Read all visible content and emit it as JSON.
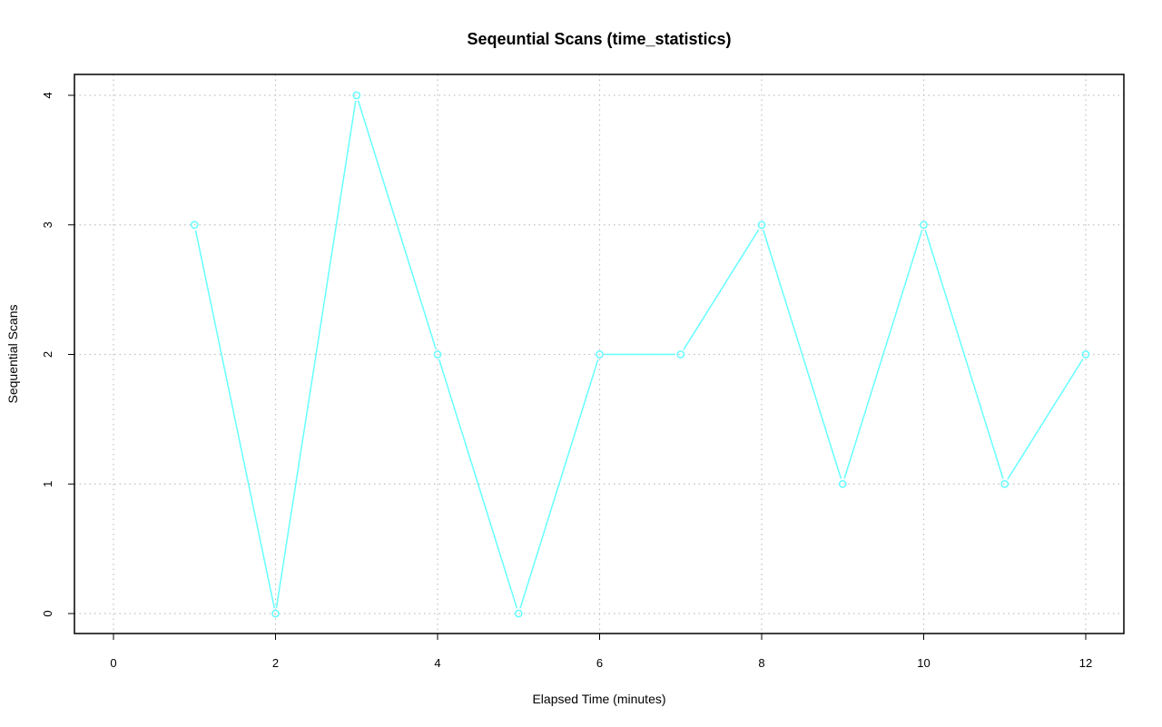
{
  "chart_data": {
    "type": "line",
    "title": "Seqeuntial Scans (time_statistics)",
    "xlabel": "Elapsed Time (minutes)",
    "ylabel": "Sequential Scans",
    "xlim": [
      0,
      12
    ],
    "ylim": [
      0,
      4
    ],
    "x_ticks": [
      0,
      2,
      4,
      6,
      8,
      10,
      12
    ],
    "y_ticks": [
      0,
      1,
      2,
      3,
      4
    ],
    "grid": true,
    "series": [
      {
        "color": "#66ffff",
        "marker": "open-circle",
        "x": [
          1,
          2,
          3,
          4,
          5,
          6,
          7,
          8,
          9,
          10,
          11,
          12
        ],
        "values": [
          3,
          0,
          4,
          2,
          0,
          2,
          2,
          3,
          1,
          3,
          1,
          2
        ]
      }
    ]
  }
}
